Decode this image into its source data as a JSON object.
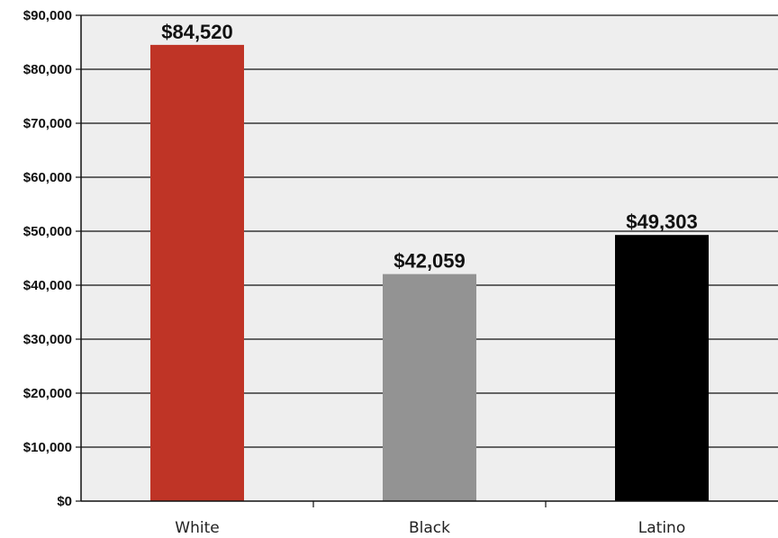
{
  "chart_data": {
    "type": "bar",
    "title": "",
    "xlabel": "",
    "ylabel": "",
    "categories": [
      "White",
      "Black",
      "Latino"
    ],
    "values": [
      84520,
      42059,
      49303
    ],
    "data_labels": [
      "$84,520",
      "$42,059",
      "$49,303"
    ],
    "colors": [
      "#bf3426",
      "#939393",
      "#000000"
    ],
    "ylim": [
      0,
      90000
    ],
    "yticks": [
      0,
      10000,
      20000,
      30000,
      40000,
      50000,
      60000,
      70000,
      80000,
      90000
    ],
    "ytick_labels": [
      "$0",
      "$10,000",
      "$20,000",
      "$30,000",
      "$40,000",
      "$50,000",
      "$60,000",
      "$70,000",
      "$80,000",
      "$90,000"
    ],
    "grid": true,
    "plot_background": "#eeeeee",
    "legend": "none"
  }
}
